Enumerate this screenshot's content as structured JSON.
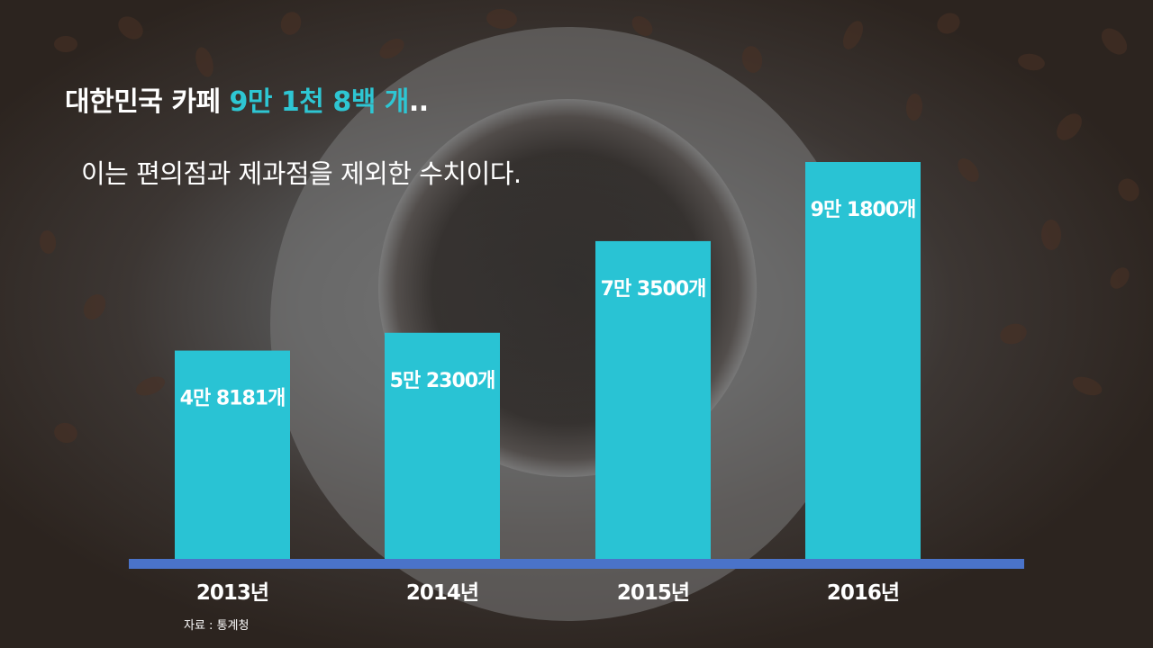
{
  "headline": {
    "prefix": "대한민국 카페 ",
    "highlight": "9만 1천 8백 개",
    "suffix": ".."
  },
  "subtitle": "이는 편의점과 제과점을 제외한 수치이다.",
  "source": "자료 : 통계청",
  "colors": {
    "bar": "#29c3d4",
    "baseline": "#4a73c9",
    "highlight": "#2ec6d3"
  },
  "chart_data": {
    "type": "bar",
    "categories": [
      "2013년",
      "2014년",
      "2015년",
      "2016년"
    ],
    "values": [
      48181,
      52300,
      73500,
      91800
    ],
    "data_labels": [
      "4만 8181개",
      "5만 2300개",
      "7만 3500개",
      "9만 1800개"
    ],
    "grid": false
  }
}
